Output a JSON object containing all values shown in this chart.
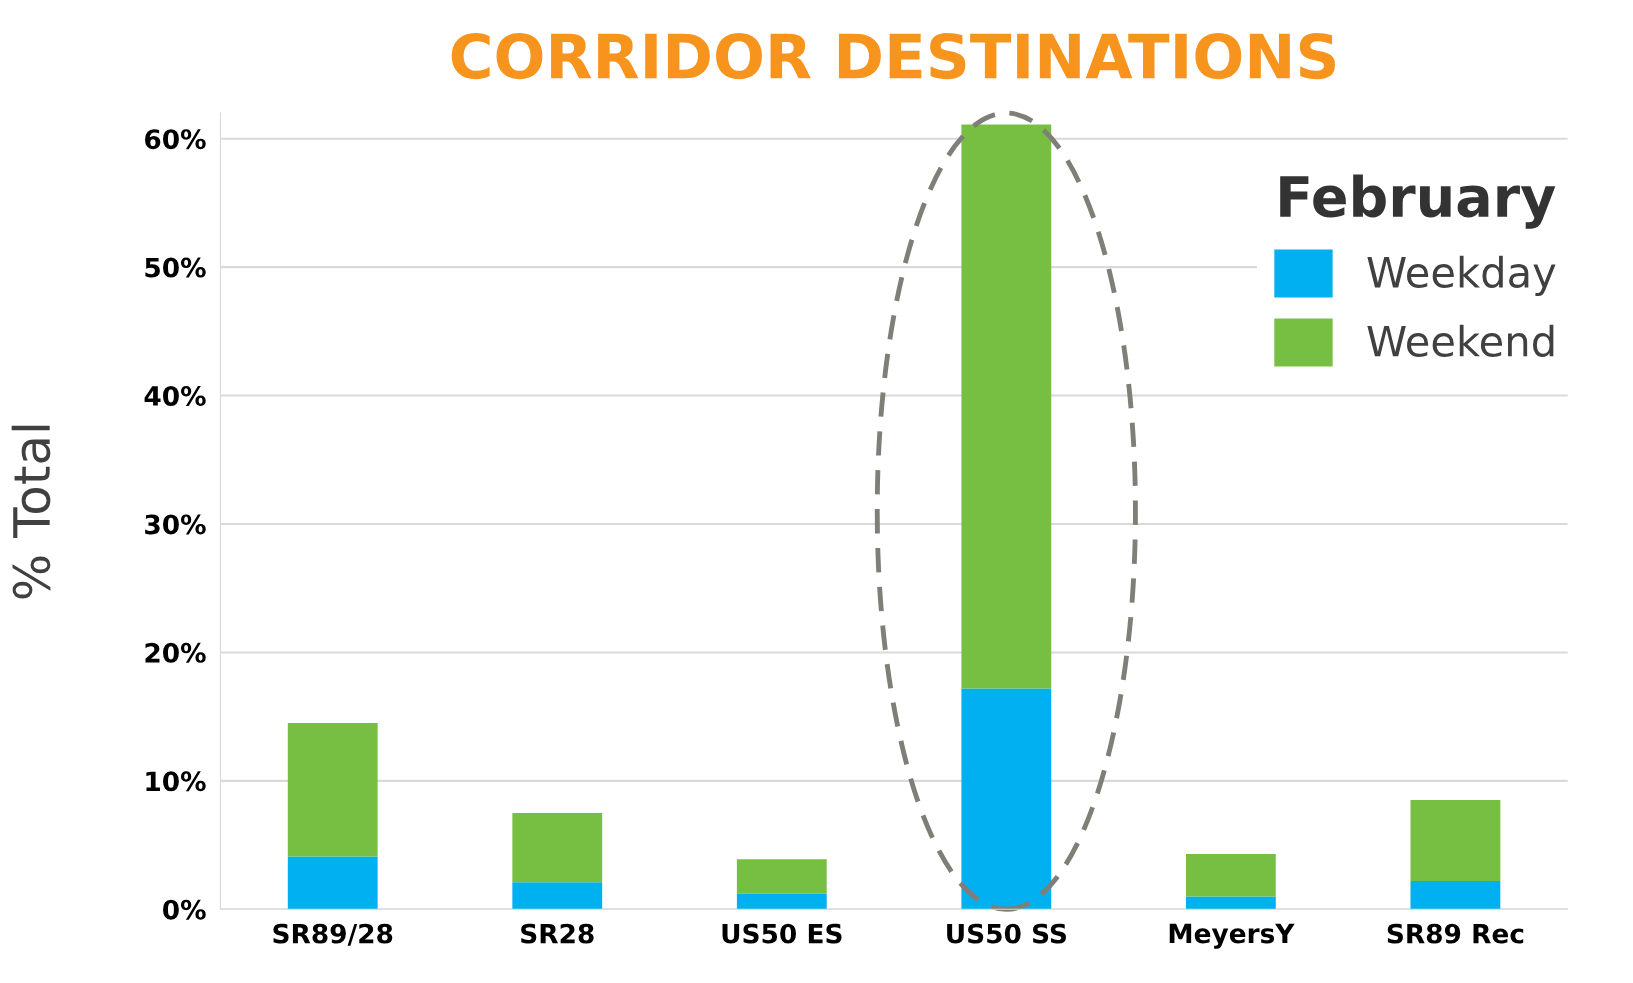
{
  "chart_data": {
    "type": "bar",
    "title": "CORRIDOR DESTINATIONS",
    "ylabel": "% Total",
    "legend_title": "February",
    "categories": [
      "SR89/28",
      "SR28",
      "US50 ES",
      "US50 SS",
      "MeyersY",
      "SR89 Rec"
    ],
    "stacked": true,
    "series": [
      {
        "name": "Weekday",
        "color": "#00b0f0",
        "values": [
          4.1,
          2.1,
          1.2,
          17.2,
          1.0,
          2.2
        ]
      },
      {
        "name": "Weekend",
        "color": "#76bf43",
        "values": [
          10.4,
          5.4,
          2.7,
          43.9,
          3.3,
          6.3
        ]
      }
    ],
    "ylim": [
      0,
      62
    ],
    "yticks": [
      {
        "value": 0,
        "label": "0%"
      },
      {
        "value": 10,
        "label": "10%"
      },
      {
        "value": 20,
        "label": "20%"
      },
      {
        "value": 30,
        "label": "30%"
      },
      {
        "value": 40,
        "label": "40%"
      },
      {
        "value": 50,
        "label": "50%"
      },
      {
        "value": 60,
        "label": "60%"
      }
    ],
    "grid": "y",
    "legend": "top right"
  }
}
